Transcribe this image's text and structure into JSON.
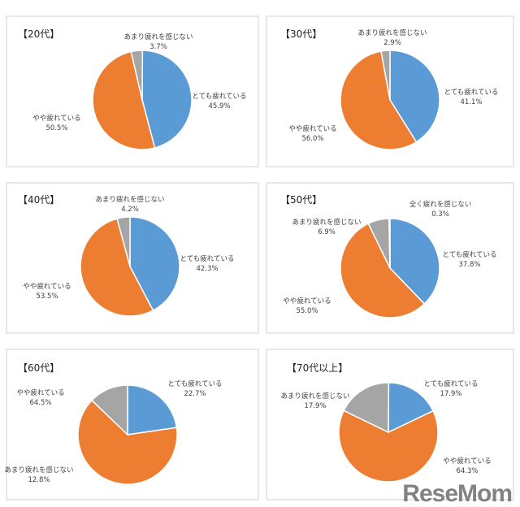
{
  "colors": {
    "very_tired": "#5B9BD5",
    "somewhat_tired": "#ED7D31",
    "not_very": "#A5A5A5",
    "not_at_all": "#FFC000"
  },
  "chart_data": [
    {
      "type": "pie",
      "title": "【20代】",
      "slices": [
        {
          "label": "とても疲れている",
          "value": 45.9,
          "text": "45.9%"
        },
        {
          "label": "やや疲れている",
          "value": 50.5,
          "text": "50.5%"
        },
        {
          "label": "あまり疲れを感じない",
          "value": 3.7,
          "text": "3.7%"
        }
      ]
    },
    {
      "type": "pie",
      "title": "【30代】",
      "slices": [
        {
          "label": "とても疲れている",
          "value": 41.1,
          "text": "41.1%"
        },
        {
          "label": "やや疲れている",
          "value": 56.0,
          "text": "56.0%"
        },
        {
          "label": "あまり疲れを感じない",
          "value": 2.9,
          "text": "2.9%"
        }
      ]
    },
    {
      "type": "pie",
      "title": "【40代】",
      "slices": [
        {
          "label": "とても疲れている",
          "value": 42.3,
          "text": "42.3%"
        },
        {
          "label": "やや疲れている",
          "value": 53.5,
          "text": "53.5%"
        },
        {
          "label": "あまり疲れを感じない",
          "value": 4.2,
          "text": "4.2%"
        }
      ]
    },
    {
      "type": "pie",
      "title": "【50代】",
      "slices": [
        {
          "label": "とても疲れている",
          "value": 37.8,
          "text": "37.8%"
        },
        {
          "label": "やや疲れている",
          "value": 55.0,
          "text": "55.0%"
        },
        {
          "label": "あまり疲れを感じない",
          "value": 6.9,
          "text": "6.9%"
        },
        {
          "label": "全く疲れを感じない",
          "value": 0.3,
          "text": "0.3%"
        }
      ]
    },
    {
      "type": "pie",
      "title": "【60代】",
      "slices": [
        {
          "label": "とても疲れている",
          "value": 22.7,
          "text": "22.7%"
        },
        {
          "label": "やや疲れている",
          "value": 64.5,
          "text": "64.5%"
        },
        {
          "label": "あまり疲れを感じない",
          "value": 12.8,
          "text": "12.8%"
        }
      ]
    },
    {
      "type": "pie",
      "title": "【70代以上】",
      "slices": [
        {
          "label": "とても疲れている",
          "value": 17.9,
          "text": "17.9%"
        },
        {
          "label": "やや疲れている",
          "value": 64.3,
          "text": "64.3%"
        },
        {
          "label": "あまり疲れを感じない",
          "value": 17.9,
          "text": "17.9%"
        }
      ]
    }
  ],
  "watermark": "ReseMom"
}
